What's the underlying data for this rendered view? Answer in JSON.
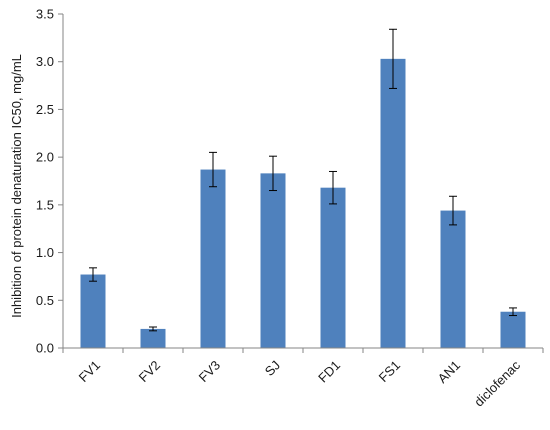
{
  "chart_data": {
    "type": "bar",
    "title": "",
    "xlabel": "",
    "ylabel": "Inhibition of protein denaturation IC50, mg/mL",
    "ylim": [
      0,
      3.5
    ],
    "yticks": [
      "0.0",
      "0.5",
      "1.0",
      "1.5",
      "2.0",
      "2.5",
      "3.0",
      "3.5"
    ],
    "grid": false,
    "legend": "none",
    "bar_color": "#4f81bd",
    "categories": [
      "FV1",
      "FV2",
      "FV3",
      "SJ",
      "FD1",
      "FS1",
      "AN1",
      "diclofenac"
    ],
    "values": [
      0.77,
      0.2,
      1.87,
      1.83,
      1.68,
      3.03,
      1.44,
      0.38
    ],
    "errors": [
      0.07,
      0.02,
      0.18,
      0.18,
      0.17,
      0.31,
      0.15,
      0.04
    ]
  }
}
